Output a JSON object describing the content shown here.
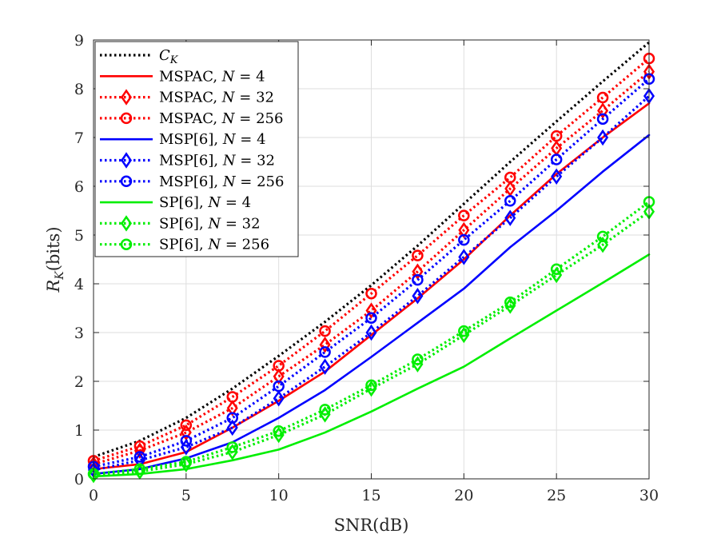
{
  "chart_data": {
    "type": "line",
    "title": "",
    "xlabel": "SNR(dB)",
    "ylabel_main": "R",
    "ylabel_sub": "K",
    "ylabel_unit": "(bits)",
    "xlim": [
      0,
      30
    ],
    "ylim": [
      0,
      9
    ],
    "xticks": [
      0,
      5,
      10,
      15,
      20,
      25,
      30
    ],
    "yticks": [
      0,
      1,
      2,
      3,
      4,
      5,
      6,
      7,
      8,
      9
    ],
    "grid": true,
    "legend_position": "top-left",
    "x": [
      0,
      2.5,
      5,
      7.5,
      10,
      12.5,
      15,
      17.5,
      20,
      22.5,
      25,
      27.5,
      30
    ],
    "series": [
      {
        "name": "C",
        "sub": "K",
        "suffix": "",
        "color": "#000000",
        "style": "dotted",
        "marker": "none",
        "values": [
          0.45,
          0.78,
          1.25,
          1.85,
          2.52,
          3.22,
          3.97,
          4.78,
          5.64,
          6.5,
          7.33,
          8.15,
          8.95
        ]
      },
      {
        "name": "MSPAC,",
        "n_value": "4",
        "color": "#ff0000",
        "style": "solid",
        "marker": "none",
        "values": [
          0.2,
          0.3,
          0.55,
          1.05,
          1.6,
          2.2,
          2.95,
          3.7,
          4.5,
          5.4,
          6.25,
          7.0,
          7.7
        ]
      },
      {
        "name": "MSPAC,",
        "n_value": "32",
        "color": "#ff0000",
        "style": "dotted",
        "marker": "diamond",
        "values": [
          0.3,
          0.58,
          0.95,
          1.45,
          2.1,
          2.75,
          3.45,
          4.25,
          5.1,
          5.95,
          6.78,
          7.55,
          8.35
        ]
      },
      {
        "name": "MSPAC,",
        "n_value": "256",
        "color": "#ff0000",
        "style": "dotted",
        "marker": "circle",
        "values": [
          0.37,
          0.67,
          1.1,
          1.68,
          2.32,
          3.03,
          3.8,
          4.58,
          5.4,
          6.18,
          7.03,
          7.82,
          8.62
        ]
      },
      {
        "name": "MSP[6],",
        "n_value": "4",
        "color": "#0000ff",
        "style": "solid",
        "marker": "none",
        "values": [
          0.1,
          0.2,
          0.42,
          0.75,
          1.25,
          1.82,
          2.5,
          3.2,
          3.9,
          4.75,
          5.5,
          6.3,
          7.05
        ]
      },
      {
        "name": "MSP[6],",
        "n_value": "32",
        "color": "#0000ff",
        "style": "dotted",
        "marker": "diamond",
        "values": [
          0.18,
          0.38,
          0.65,
          1.05,
          1.65,
          2.3,
          3.0,
          3.75,
          4.55,
          5.35,
          6.2,
          7.0,
          7.85
        ]
      },
      {
        "name": "MSP[6],",
        "n_value": "256",
        "color": "#0000ff",
        "style": "dotted",
        "marker": "circle",
        "values": [
          0.25,
          0.45,
          0.78,
          1.25,
          1.9,
          2.6,
          3.3,
          4.08,
          4.9,
          5.7,
          6.55,
          7.38,
          8.2
        ]
      },
      {
        "name": "SP[6],",
        "n_value": "4",
        "color": "#00ee00",
        "style": "solid",
        "marker": "none",
        "values": [
          0.05,
          0.1,
          0.2,
          0.38,
          0.6,
          0.95,
          1.38,
          1.85,
          2.3,
          2.88,
          3.45,
          4.02,
          4.6
        ]
      },
      {
        "name": "SP[6],",
        "n_value": "32",
        "color": "#00ee00",
        "style": "dotted",
        "marker": "diamond",
        "values": [
          0.08,
          0.15,
          0.3,
          0.55,
          0.9,
          1.32,
          1.85,
          2.35,
          2.95,
          3.55,
          4.18,
          4.8,
          5.48
        ]
      },
      {
        "name": "SP[6],",
        "n_value": "256",
        "color": "#00ee00",
        "style": "dotted",
        "marker": "circle",
        "values": [
          0.1,
          0.2,
          0.35,
          0.65,
          0.98,
          1.42,
          1.92,
          2.45,
          3.03,
          3.62,
          4.3,
          4.97,
          5.68
        ]
      }
    ]
  }
}
